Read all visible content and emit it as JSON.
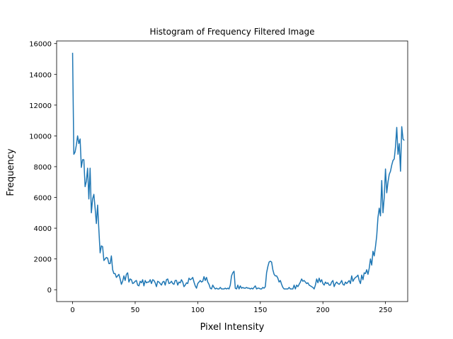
{
  "chart_data": {
    "type": "line",
    "title": "Histogram of Frequency Filtered Image",
    "xlabel": "Pixel Intensity",
    "ylabel": "Frequency",
    "xlim": [
      -12.75,
      267.75
    ],
    "ylim": [
      -770,
      16170
    ],
    "xticks": [
      0,
      50,
      100,
      150,
      200,
      250
    ],
    "yticks": [
      0,
      2000,
      4000,
      6000,
      8000,
      10000,
      12000,
      14000,
      16000
    ],
    "grid": false,
    "line_color": "#1f77b4",
    "series": [
      {
        "values": [
          15400,
          8800,
          8950,
          9400,
          10000,
          9500,
          9800,
          7950,
          8450,
          8450,
          6700,
          7050,
          7900,
          5900,
          7900,
          5000,
          5900,
          6200,
          5300,
          4300,
          5500,
          3900,
          2400,
          2850,
          2800,
          1900,
          2000,
          2100,
          2050,
          1700,
          1700,
          2200,
          1300,
          1050,
          1050,
          800,
          900,
          1000,
          700,
          350,
          550,
          900,
          600,
          1000,
          1100,
          500,
          700,
          650,
          400,
          450,
          550,
          600,
          300,
          250,
          550,
          450,
          650,
          250,
          600,
          450,
          500,
          500,
          650,
          400,
          650,
          600,
          450,
          200,
          550,
          500,
          400,
          300,
          500,
          550,
          300,
          650,
          700,
          400,
          450,
          550,
          400,
          350,
          600,
          600,
          300,
          500,
          450,
          650,
          500,
          200,
          300,
          450,
          400,
          750,
          650,
          700,
          800,
          500,
          250,
          100,
          400,
          500,
          600,
          500,
          550,
          850,
          600,
          800,
          500,
          350,
          100,
          50,
          300,
          150,
          50,
          100,
          50,
          50,
          150,
          50,
          50,
          50,
          100,
          50,
          100,
          50,
          300,
          900,
          1100,
          1200,
          100,
          50,
          300,
          50,
          250,
          100,
          150,
          100,
          100,
          150,
          100,
          100,
          50,
          100,
          50,
          150,
          250,
          50,
          100,
          100,
          50,
          50,
          150,
          100,
          200,
          1100,
          1500,
          1800,
          1850,
          1800,
          1300,
          1000,
          900,
          900,
          750,
          500,
          600,
          350,
          150,
          50,
          50,
          50,
          50,
          150,
          50,
          50,
          50,
          300,
          50,
          300,
          200,
          350,
          500,
          700,
          550,
          600,
          500,
          400,
          450,
          300,
          250,
          200,
          150,
          50,
          300,
          700,
          450,
          750,
          500,
          650,
          400,
          300,
          500,
          400,
          450,
          300,
          300,
          500,
          600,
          200,
          400,
          500,
          400,
          350,
          450,
          600,
          350,
          300,
          500,
          400,
          500,
          600,
          400,
          900,
          550,
          700,
          800,
          850,
          950,
          600,
          400,
          950,
          650,
          1100,
          1050,
          1300,
          1000,
          1400,
          2000,
          1600,
          2500,
          2200,
          2800,
          3500,
          4700,
          5300,
          4800,
          7100,
          5000,
          6000,
          7850,
          6300,
          7000,
          7500,
          7700,
          8100,
          8400,
          8500,
          9300,
          10550,
          8800,
          9500,
          7700,
          10600,
          9800,
          9700
        ]
      }
    ]
  }
}
